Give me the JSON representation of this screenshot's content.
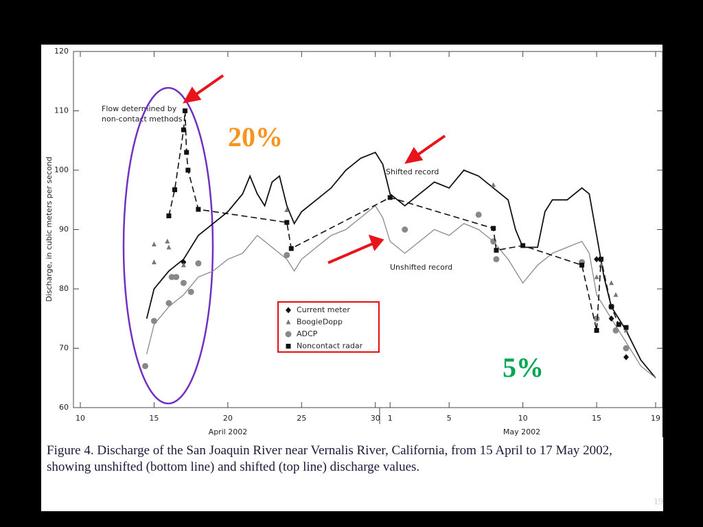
{
  "chart_data": {
    "type": "line",
    "y_label": "Discharge, in cubic meters per second",
    "x_group_labels": [
      "April 2002",
      "May 2002"
    ],
    "xlim": [
      10,
      49
    ],
    "ylim": [
      60,
      120
    ],
    "xticks": [
      10,
      15,
      20,
      25,
      30,
      {
        "value": 31,
        "label": "1"
      },
      {
        "value": 35,
        "label": "5"
      },
      {
        "value": 40,
        "label": "10"
      },
      {
        "value": 45,
        "label": "15"
      },
      {
        "value": 49,
        "label": "19"
      }
    ],
    "yticks": [
      60,
      70,
      80,
      90,
      100,
      110,
      120
    ],
    "annotations": [
      "Flow determined by",
      "non-contact methods",
      "20%",
      "5%"
    ],
    "series": [
      {
        "name": "Shifted record",
        "color": "#111111",
        "mode": "line",
        "x": [
          14.5,
          15,
          16,
          17,
          18,
          19,
          20,
          21,
          21.5,
          22,
          22.5,
          23,
          23.5,
          24,
          24.5,
          25,
          26,
          27,
          28,
          29,
          30,
          30.5,
          31,
          32,
          33,
          34,
          35,
          36,
          37,
          38,
          39,
          39.5,
          40,
          41,
          41.5,
          42,
          43,
          44,
          44.5,
          45,
          45.5,
          46,
          47,
          48,
          49
        ],
        "values": [
          75,
          80,
          83,
          85,
          89,
          91,
          93,
          96,
          99,
          96,
          94,
          98,
          99,
          94,
          91,
          93,
          95,
          97,
          100,
          102,
          103,
          101,
          96,
          94,
          96,
          98,
          97,
          100,
          99,
          97,
          95,
          90,
          87,
          87,
          93,
          95,
          95,
          97,
          96,
          89,
          82,
          77,
          73,
          68,
          65
        ]
      },
      {
        "name": "Unshifted record",
        "color": "#8a8a8a",
        "mode": "line",
        "x": [
          14.5,
          15,
          16,
          17,
          18,
          19,
          20,
          21,
          22,
          22.5,
          23,
          24,
          24.5,
          25,
          26,
          27,
          28,
          29,
          30,
          30.5,
          31,
          32,
          33,
          34,
          35,
          36,
          37,
          38,
          39,
          40,
          41,
          42,
          43,
          44,
          44.5,
          45,
          46,
          47,
          48,
          49
        ],
        "values": [
          69,
          74,
          77,
          79,
          82,
          83,
          85,
          86,
          89,
          88,
          87,
          85,
          83,
          85,
          87,
          89,
          90,
          92,
          94,
          92,
          88,
          86,
          88,
          90,
          89,
          91,
          90,
          88,
          85,
          81,
          84,
          86,
          87,
          88,
          86,
          79,
          75,
          71,
          67,
          65
        ]
      },
      {
        "name": "Current meter",
        "color": "#111111",
        "mode": "markers",
        "marker": "diamond",
        "x": [
          17,
          45,
          46,
          47
        ],
        "values": [
          84.5,
          85,
          75,
          68.5
        ]
      },
      {
        "name": "BoogieDopp",
        "color": "#777777",
        "mode": "markers",
        "marker": "triangle",
        "x": [
          15,
          15,
          15.9,
          16,
          17,
          24,
          38,
          45,
          45.3,
          46,
          46.3,
          47
        ],
        "values": [
          87.5,
          84.5,
          88,
          87,
          84,
          93.3,
          97.5,
          82,
          84,
          81,
          79,
          73
        ]
      },
      {
        "name": "ADCP",
        "color": "#888888",
        "mode": "markers",
        "marker": "circle",
        "x": [
          14.4,
          15,
          16,
          16.2,
          16.5,
          17,
          17.5,
          18,
          24,
          32,
          37,
          38,
          38.2,
          44,
          45,
          46,
          46.3,
          47
        ],
        "values": [
          67,
          74.6,
          77.6,
          82,
          82,
          81,
          79.5,
          84.3,
          85.7,
          90,
          92.5,
          88,
          85,
          84.5,
          75,
          77,
          73,
          70
        ]
      },
      {
        "name": "Noncontact radar",
        "color": "#111111",
        "mode": "markers",
        "marker": "square",
        "dashed_line": true,
        "x": [
          16,
          16.4,
          17,
          17.1,
          17.2,
          17.3,
          18,
          24,
          24.3,
          31,
          38,
          38.2,
          40,
          44,
          45,
          45.3,
          46,
          46.5,
          47
        ],
        "values": [
          92.3,
          96.7,
          106.8,
          110,
          103,
          100,
          93.4,
          91.2,
          86.8,
          95.4,
          90.2,
          86.5,
          87.3,
          84,
          73,
          85,
          77,
          74,
          73.5
        ]
      }
    ],
    "caption": "Figure 4. Discharge of the San Joaquin River near Vernalis River, California, from 15 April to 17 May 2002, showing unshifted (bottom line) and shifted (top line) discharge values.",
    "page_number": "19"
  }
}
